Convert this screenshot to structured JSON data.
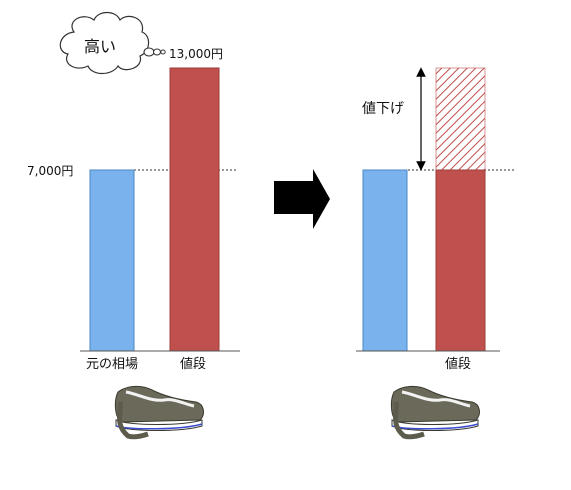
{
  "left": {
    "thought_bubble": "高い",
    "price_high_label": "13,000円",
    "price_base_label": "7,000円",
    "category_market": "元の相場",
    "category_price": "値段",
    "values": {
      "market": 7000,
      "price": 13000
    }
  },
  "right": {
    "reduction_label": "値下げ",
    "category_price": "値段",
    "values": {
      "market": 7000,
      "price": 7000,
      "previous_price": 13000
    }
  },
  "colors": {
    "market_bar": "#7ab2ee",
    "price_bar": "#c0504d",
    "bar_edge": "#4a86c5",
    "arrow": "#000000",
    "hatch": "#c0504d"
  },
  "icons": {
    "sneaker": "sneaker-icon",
    "arrow": "right-arrow-icon"
  }
}
